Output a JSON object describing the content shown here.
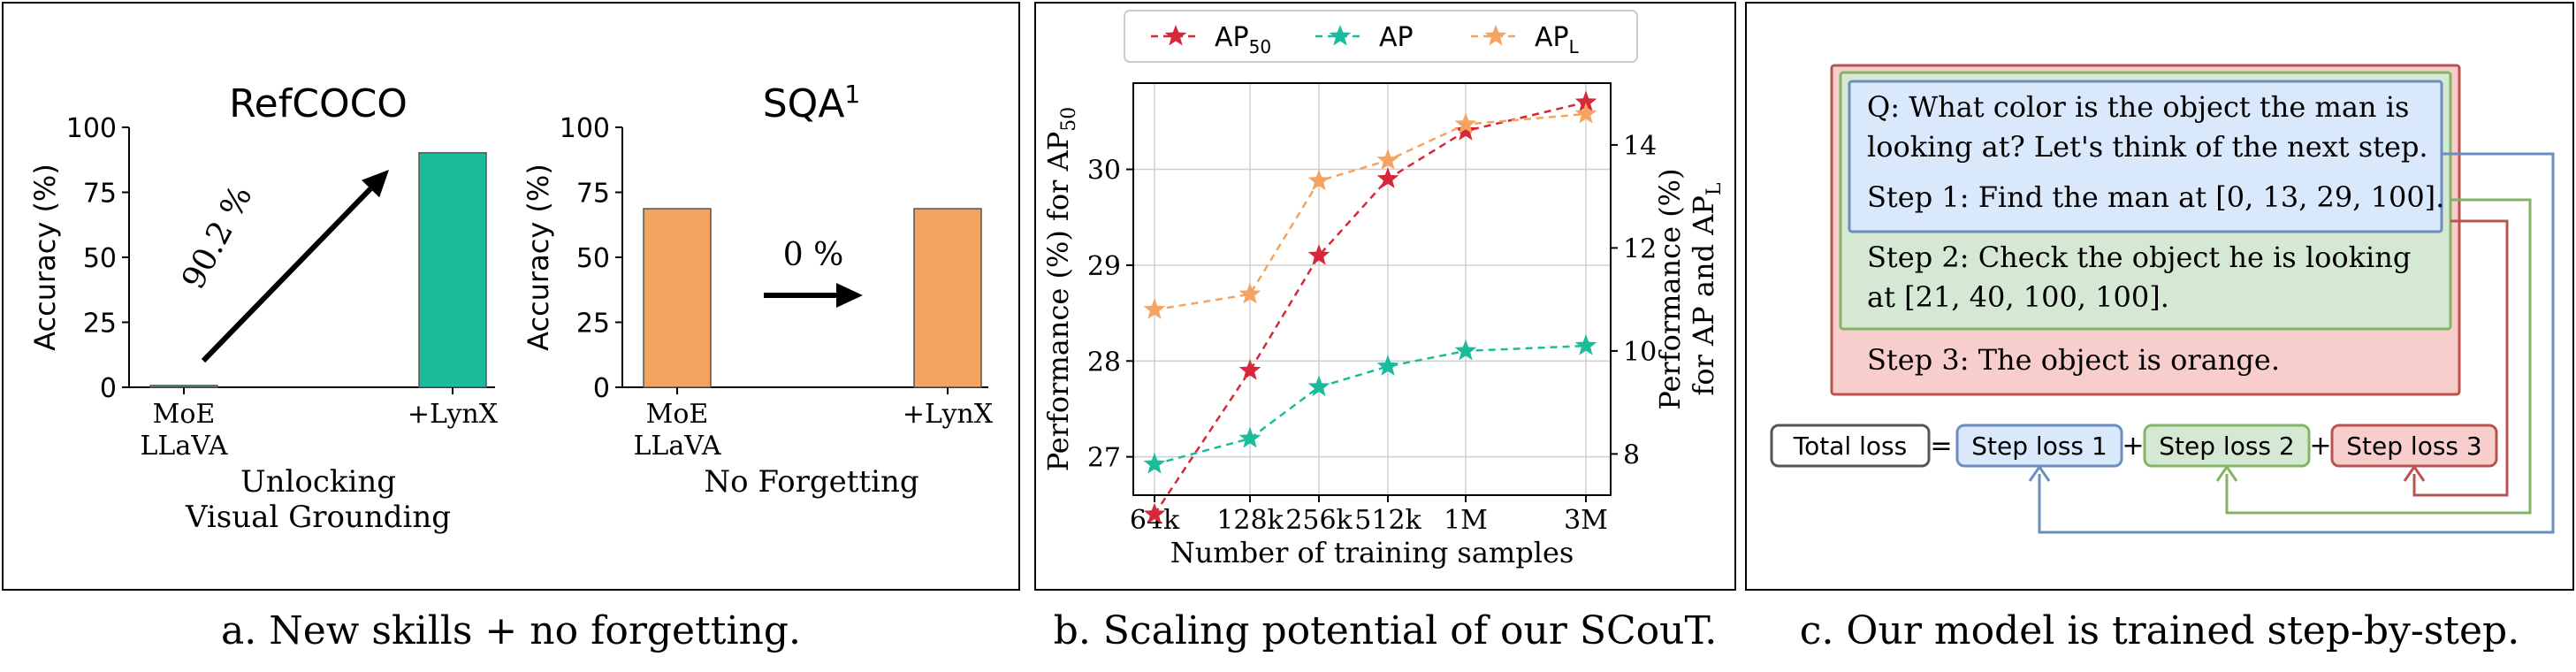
{
  "captions": {
    "a": "a. New skills + no forgetting.",
    "b": "b. Scaling potential of our SCouT.",
    "c": "c. Our model is trained step-by-step."
  },
  "chart_data": [
    {
      "type": "bar",
      "title": "RefCOCO",
      "categories": [
        "MoE LLaVA",
        "+LynX"
      ],
      "category_lines": [
        [
          "MoE",
          "LLaVA"
        ],
        [
          "+LynX"
        ]
      ],
      "values": [
        0.7,
        90.2
      ],
      "ylabel": "Accuracy (%)",
      "ylim": [
        0,
        100
      ],
      "yticks": [
        0,
        25,
        50,
        75,
        100
      ],
      "bar_color": "#1abc9c",
      "annotation": "90.2 %",
      "xlabel_lines": [
        "Unlocking",
        "Visual Grounding"
      ]
    },
    {
      "type": "bar",
      "title": "SQA",
      "title_sup": "1",
      "categories": [
        "MoE LLaVA",
        "+LynX"
      ],
      "category_lines": [
        [
          "MoE",
          "LLaVA"
        ],
        [
          "+LynX"
        ]
      ],
      "values": [
        68.7,
        68.7
      ],
      "ylabel": "Accuracy (%)",
      "ylim": [
        0,
        100
      ],
      "yticks": [
        0,
        25,
        50,
        75,
        100
      ],
      "bar_color": "#f4a460",
      "annotation": "0 %",
      "xlabel_lines": [
        "No Forgetting"
      ]
    },
    {
      "type": "line",
      "x": [
        "64k",
        "128k",
        "256k",
        "512k",
        "1M",
        "3M"
      ],
      "xlabel": "Number of training samples",
      "ylabel_left": "Performance (%) for AP",
      "ylabel_left_sub": "50",
      "ylabel_right_line1": "Performance (%)",
      "ylabel_right_line2": "for AP and AP",
      "ylabel_right_sub": "L",
      "ylim_left": [
        26.6,
        30.9
      ],
      "yticks_left": [
        27,
        28,
        29,
        30
      ],
      "ylim_right": [
        7.2,
        15.2
      ],
      "yticks_right": [
        8,
        10,
        12,
        14
      ],
      "grid": true,
      "legend_position": "top",
      "series": [
        {
          "name": "AP",
          "sub": "50",
          "axis": "left",
          "color": "#d62839",
          "values": [
            26.4,
            27.9,
            29.1,
            29.9,
            30.4,
            30.7
          ]
        },
        {
          "name": "AP",
          "sub": "",
          "axis": "right",
          "color": "#1abc9c",
          "values": [
            7.8,
            8.3,
            9.3,
            9.7,
            10.0,
            10.1
          ]
        },
        {
          "name": "AP",
          "sub": "L",
          "axis": "right",
          "color": "#f4a460",
          "values": [
            10.8,
            11.1,
            13.3,
            13.7,
            14.4,
            14.6
          ]
        }
      ]
    }
  ],
  "diagram": {
    "question_lines": [
      "Q: What color is the object the man is",
      "looking at? Let's think of the next step."
    ],
    "step1": "Step 1: Find the man at [0, 13, 29, 100].",
    "step2_lines": [
      "Step 2: Check the object he is looking",
      "at [21, 40, 100, 100]."
    ],
    "step3": "Step 3: The object is orange.",
    "total_loss": "Total loss",
    "equals": "=",
    "plus": "+",
    "step_loss_1": "Step loss 1",
    "step_loss_2": "Step loss 2",
    "step_loss_3": "Step loss 3",
    "colors": {
      "blue_fill": "#dae8fc",
      "blue_stroke": "#6c8ebf",
      "green_fill": "#d5e8d4",
      "green_stroke": "#82b366",
      "red_fill": "#f8cecc",
      "red_stroke": "#b85450"
    }
  }
}
